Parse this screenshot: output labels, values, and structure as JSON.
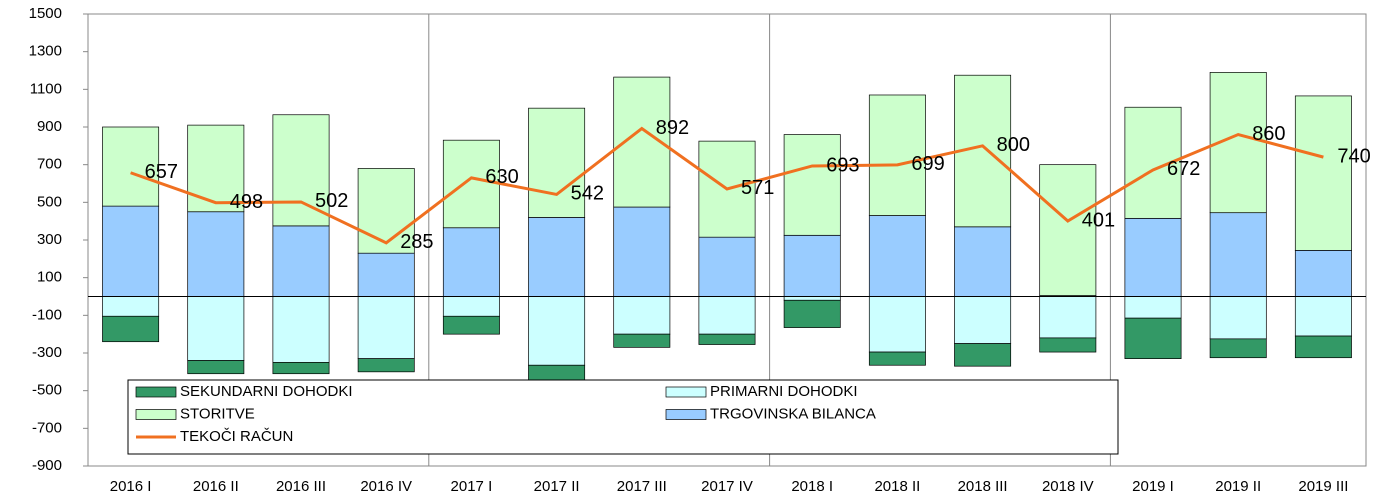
{
  "chart_data": {
    "type": "bar",
    "stacked": true,
    "legend": "bottom-left",
    "categories": [
      "2016 I",
      "2016 II",
      "2016 III",
      "2016 IV",
      "2017 I",
      "2017 II",
      "2017 III",
      "2017 IV",
      "2018 I",
      "2018 II",
      "2018 III",
      "2018 IV",
      "2019 I",
      "2019 II",
      "2019 III"
    ],
    "ylim": [
      -900,
      1500
    ],
    "yticks": [
      -900,
      -700,
      -500,
      -300,
      -100,
      100,
      300,
      500,
      700,
      900,
      1100,
      1300,
      1500
    ],
    "series": [
      {
        "name": "SEKUNDARNI DOHODKI",
        "color": "#339966",
        "values": [
          -135,
          -70,
          -60,
          -70,
          -95,
          -85,
          -70,
          -55,
          -145,
          -70,
          -120,
          -75,
          -215,
          -100,
          -115
        ]
      },
      {
        "name": "PRIMARNI DOHODKI",
        "color": "#ccffff",
        "values": [
          -105,
          -340,
          -350,
          -330,
          -105,
          -365,
          -200,
          -200,
          -20,
          -295,
          -250,
          -220,
          -115,
          -225,
          -210
        ]
      },
      {
        "name": "STORITVE",
        "color": "#ccffcc",
        "values": [
          420,
          460,
          590,
          450,
          465,
          580,
          690,
          510,
          535,
          640,
          805,
          695,
          590,
          745,
          820
        ]
      },
      {
        "name": "TRGOVINSKA BILANCA",
        "color": "#99ccff",
        "values": [
          480,
          450,
          375,
          230,
          365,
          420,
          475,
          315,
          325,
          430,
          370,
          5,
          415,
          445,
          245
        ]
      },
      {
        "name": "TEKOČI RAČUN",
        "color": "#f07020",
        "type": "line",
        "values": [
          657,
          498,
          502,
          285,
          630,
          542,
          892,
          571,
          693,
          699,
          800,
          401,
          672,
          860,
          740
        ]
      }
    ]
  }
}
